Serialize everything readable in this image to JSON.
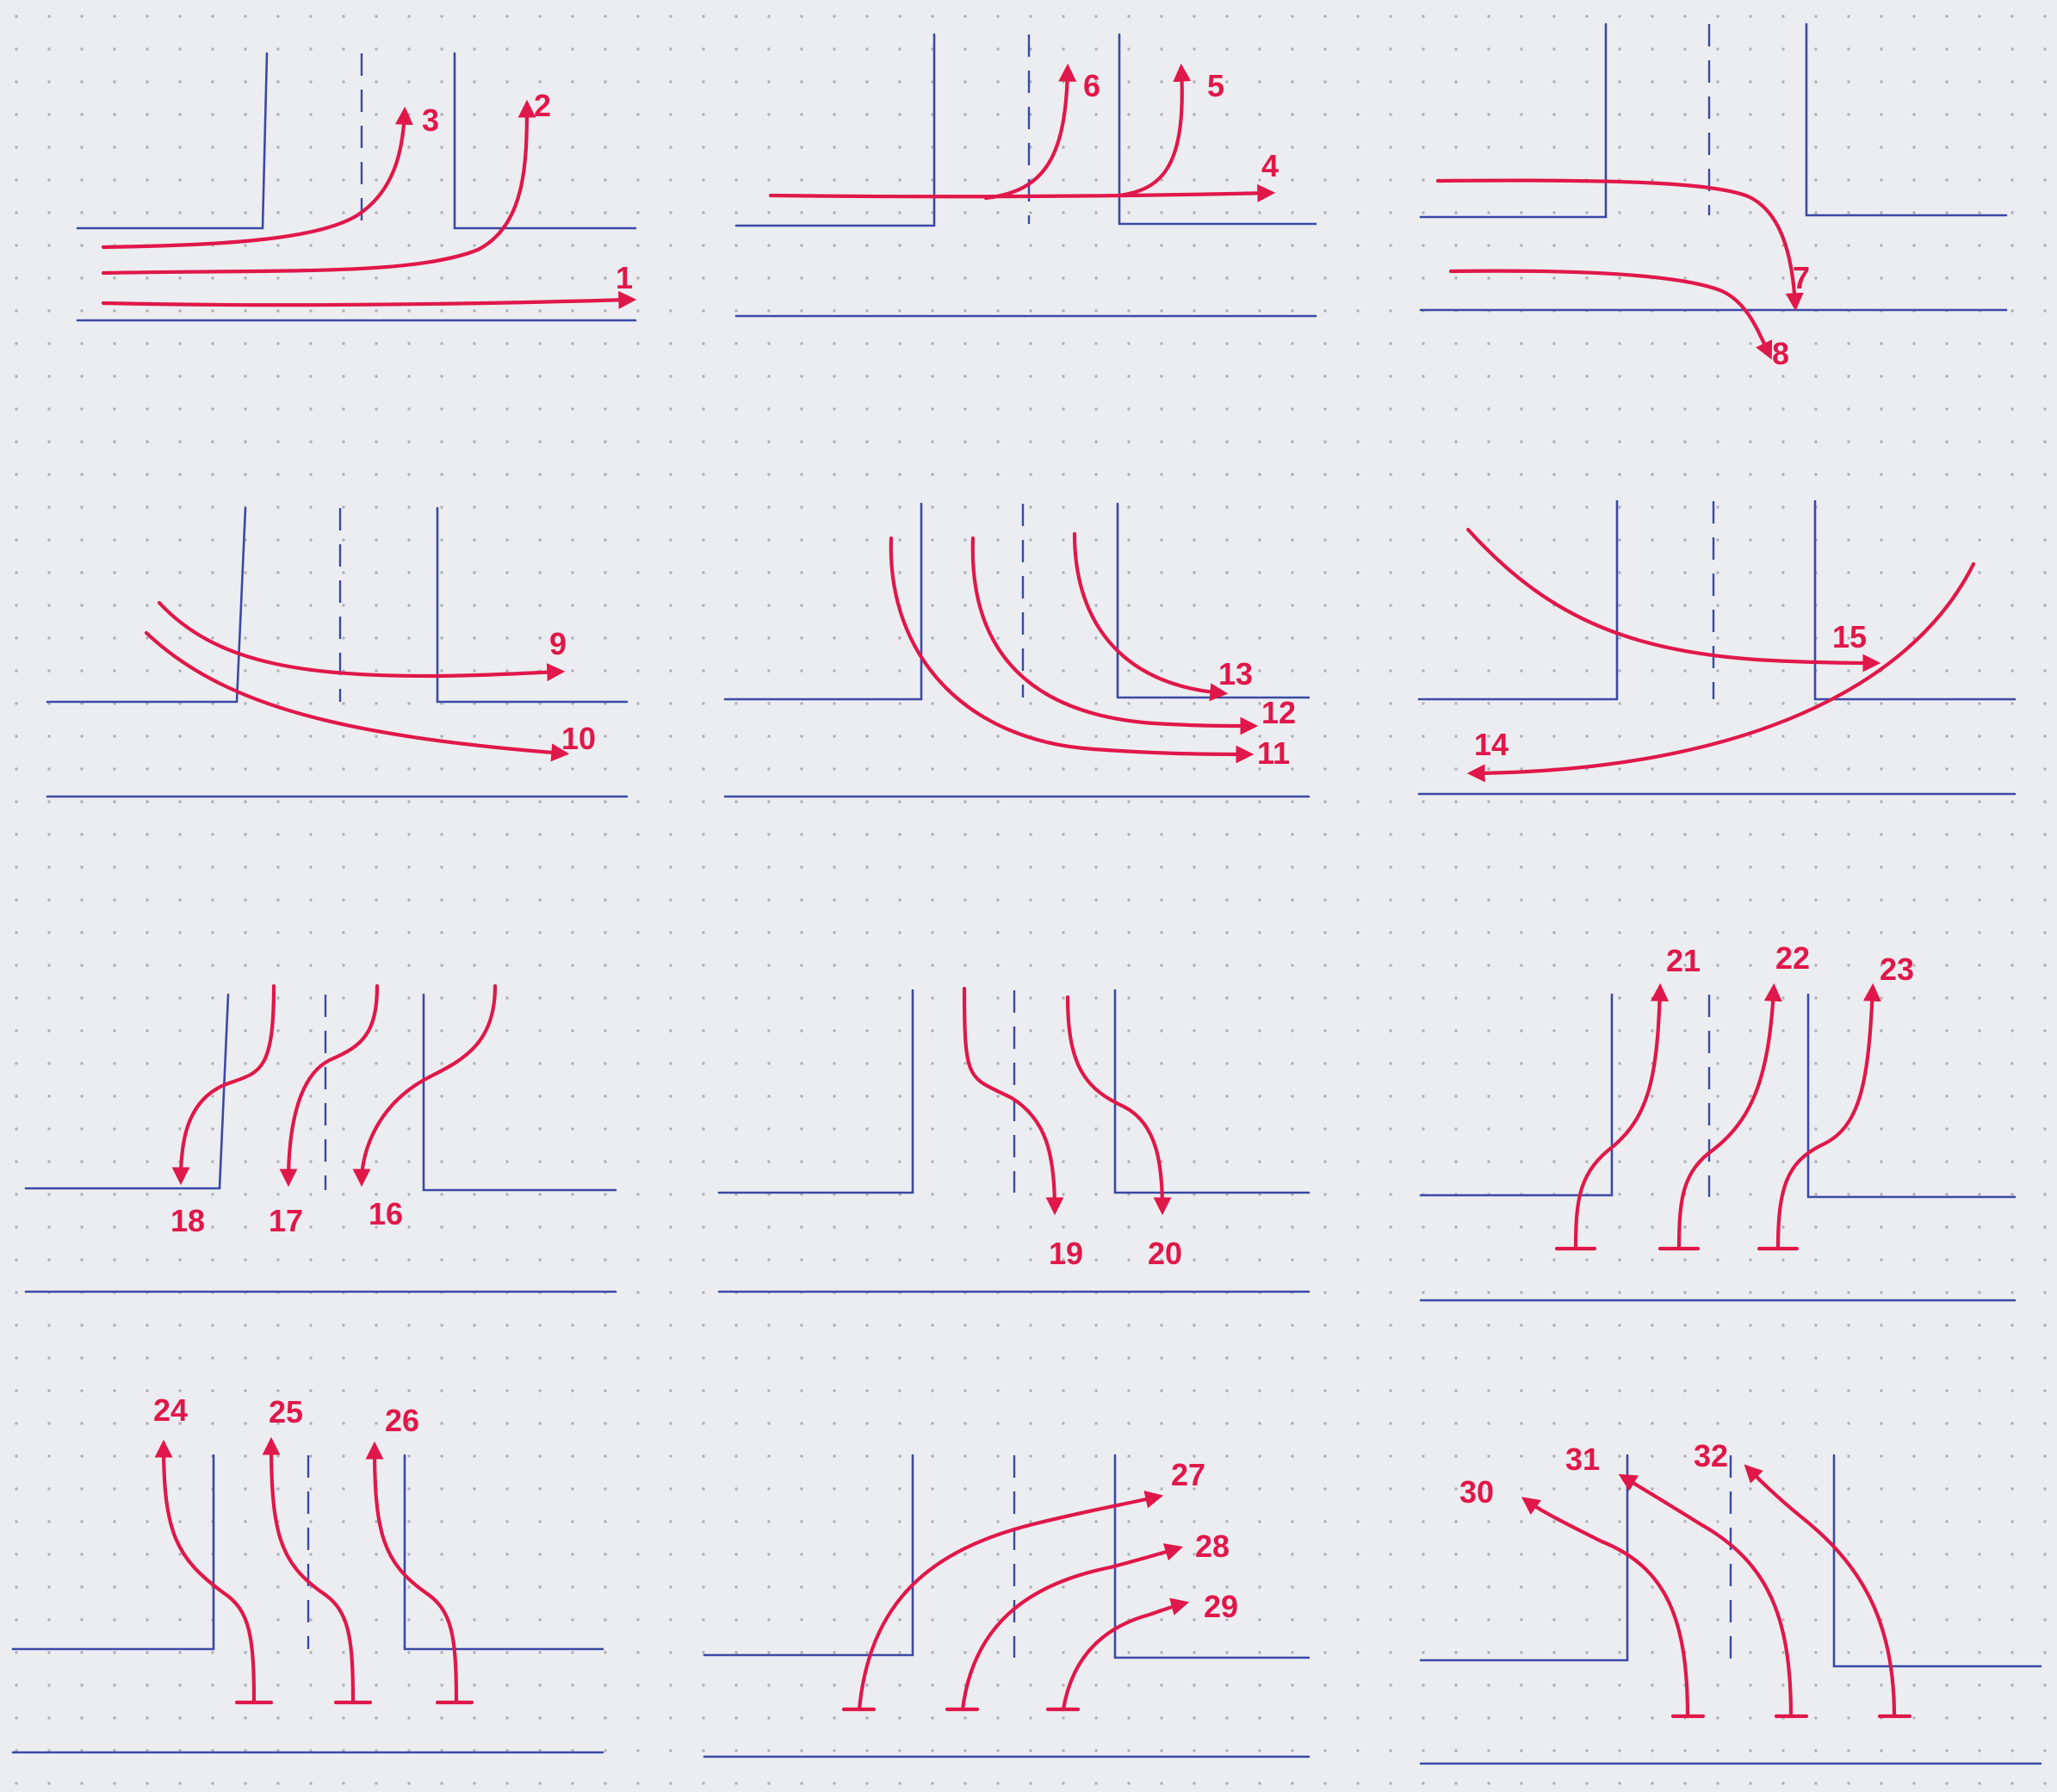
{
  "colors": {
    "paper": "#ecedf0",
    "dots": "#aeb1b8",
    "road_lines": "#3a4aa6",
    "vehicle_paths": "#e0174a"
  },
  "labels": [
    "1",
    "2",
    "3",
    "4",
    "5",
    "6",
    "7",
    "8",
    "9",
    "10",
    "11",
    "12",
    "13",
    "14",
    "15",
    "16",
    "17",
    "18",
    "19",
    "20",
    "21",
    "22",
    "23",
    "24",
    "25",
    "26",
    "27",
    "28",
    "29",
    "30",
    "31",
    "32"
  ]
}
